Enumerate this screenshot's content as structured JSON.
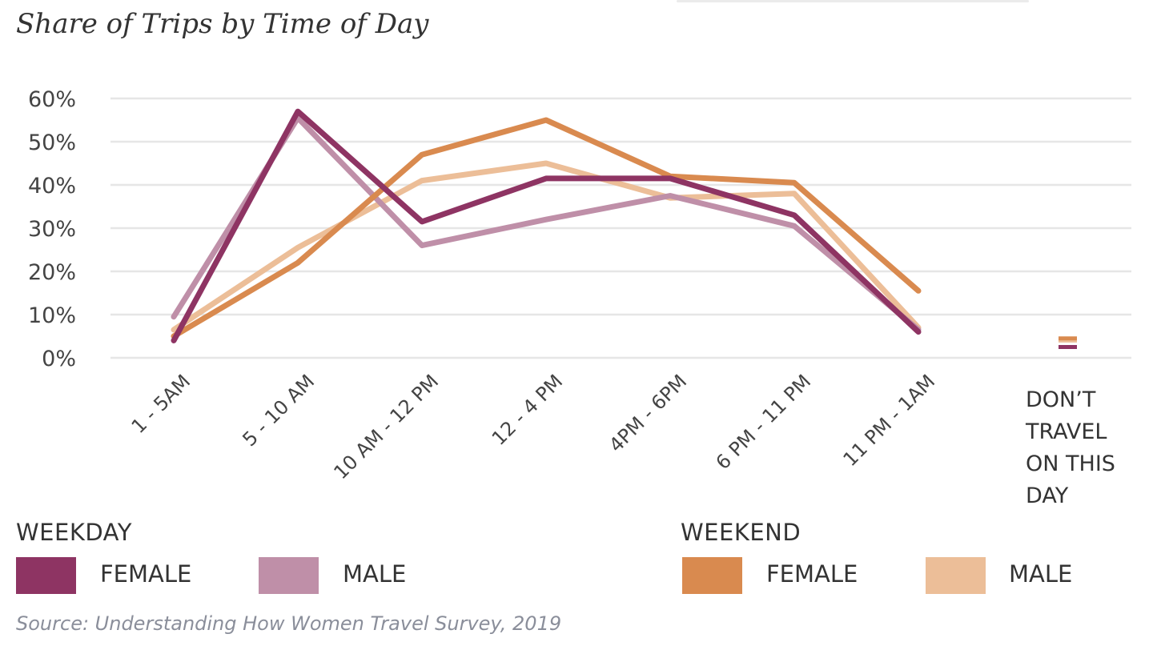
{
  "chart_data": {
    "type": "line",
    "title": "Share of Trips by Time of Day",
    "xlabel": "",
    "ylabel": "",
    "ylim": [
      0,
      60
    ],
    "yticks": [
      0,
      10,
      20,
      30,
      40,
      50,
      60
    ],
    "ytick_labels": [
      "0%",
      "10%",
      "20%",
      "30%",
      "40%",
      "50%",
      "60%"
    ],
    "grid": true,
    "categories": [
      "1 - 5AM",
      "5 - 10 AM",
      "10 AM - 12 PM",
      "12 - 4 PM",
      "4PM - 6PM",
      "6 PM - 11 PM",
      "11 PM - 1AM",
      "DON’T TRAVEL ON THIS DAY"
    ],
    "last_category_lines": [
      "DON’T",
      "TRAVEL",
      "ON THIS",
      "DAY"
    ],
    "series": [
      {
        "group": "WEEKDAY",
        "name": "FEMALE",
        "color": "#8e3463",
        "values": [
          4,
          57,
          31.5,
          41.5,
          41.5,
          33,
          6,
          2.5
        ]
      },
      {
        "group": "WEEKDAY",
        "name": "MALE",
        "color": "#bf8fa8",
        "values": [
          9.5,
          55.5,
          26,
          32,
          37.5,
          30.5,
          6.5,
          2.5
        ]
      },
      {
        "group": "WEEKEND",
        "name": "FEMALE",
        "color": "#d98a4f",
        "values": [
          5,
          22,
          47,
          55,
          42,
          40.5,
          15.5,
          4.5
        ]
      },
      {
        "group": "WEEKEND",
        "name": "MALE",
        "color": "#ecbe98",
        "values": [
          6.5,
          25.5,
          41,
          45,
          37,
          38,
          7,
          4
        ]
      }
    ],
    "legend": {
      "placement": "bottom",
      "groups": [
        {
          "title": "WEEKDAY",
          "items": [
            {
              "label": "FEMALE",
              "color": "#8e3463"
            },
            {
              "label": "MALE",
              "color": "#bf8fa8"
            }
          ]
        },
        {
          "title": "WEEKEND",
          "items": [
            {
              "label": "FEMALE",
              "color": "#d98a4f"
            },
            {
              "label": "MALE",
              "color": "#ecbe98"
            }
          ]
        }
      ]
    },
    "source": "Source: Understanding How Women Travel Survey, 2019"
  }
}
